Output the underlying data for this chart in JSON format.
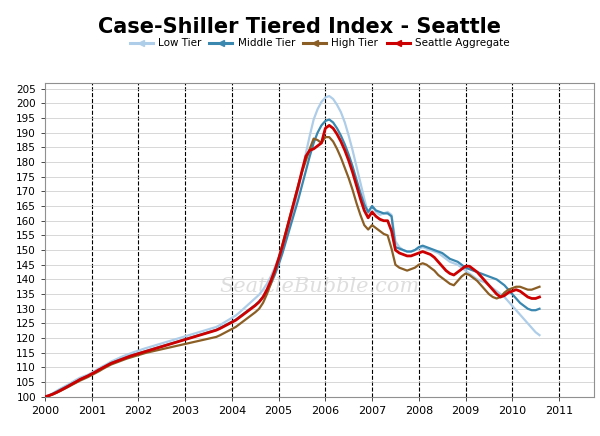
{
  "title": "Case-Shiller Tiered Index - Seattle",
  "title_fontsize": 15,
  "background_color": "#ffffff",
  "plot_bg_color": "#ffffff",
  "grid_color": "#c8c8c8",
  "ylim": [
    100,
    207
  ],
  "yticks": [
    100,
    105,
    110,
    115,
    120,
    125,
    130,
    135,
    140,
    145,
    150,
    155,
    160,
    165,
    170,
    175,
    180,
    185,
    190,
    195,
    200,
    205
  ],
  "xlim_start": 2000.0,
  "xlim_end": 2011.75,
  "watermark": "SeattleBubble.com",
  "series": {
    "low_tier": {
      "label": "Low Tier",
      "color": "#aecde8",
      "linewidth": 1.6,
      "values": [
        100.0,
        100.5,
        101.2,
        102.0,
        102.8,
        103.5,
        104.2,
        105.0,
        105.8,
        106.5,
        107.0,
        107.5,
        108.2,
        109.0,
        109.8,
        110.5,
        111.2,
        112.0,
        112.6,
        113.2,
        113.8,
        114.3,
        114.8,
        115.3,
        115.7,
        116.2,
        116.6,
        117.0,
        117.4,
        117.8,
        118.2,
        118.6,
        119.0,
        119.4,
        119.8,
        120.2,
        120.6,
        121.0,
        121.4,
        121.8,
        122.2,
        122.6,
        123.0,
        123.4,
        123.8,
        124.5,
        125.3,
        126.1,
        126.9,
        127.7,
        128.8,
        130.0,
        131.2,
        132.4,
        133.6,
        134.8,
        136.5,
        138.5,
        141.0,
        144.0,
        147.5,
        151.5,
        155.5,
        160.0,
        165.0,
        170.5,
        176.5,
        183.0,
        189.0,
        194.5,
        198.0,
        200.5,
        202.0,
        202.5,
        201.5,
        199.5,
        197.0,
        193.5,
        189.0,
        184.0,
        178.5,
        173.0,
        167.5,
        162.5,
        165.0,
        163.0,
        162.0,
        162.5,
        163.0,
        162.0,
        153.0,
        151.0,
        150.0,
        149.5,
        149.5,
        150.0,
        150.5,
        151.0,
        150.5,
        150.0,
        149.5,
        149.0,
        148.0,
        147.0,
        146.0,
        145.5,
        145.0,
        144.0,
        143.0,
        142.0,
        141.0,
        140.0,
        139.5,
        139.0,
        138.0,
        137.0,
        136.0,
        135.0,
        134.0,
        132.5,
        131.0,
        129.5,
        128.0,
        126.5,
        125.0,
        123.5,
        122.0,
        121.0
      ]
    },
    "middle_tier": {
      "label": "Middle Tier",
      "color": "#3a87b0",
      "linewidth": 1.6,
      "values": [
        100.0,
        100.4,
        101.0,
        101.7,
        102.4,
        103.1,
        103.8,
        104.5,
        105.2,
        105.9,
        106.5,
        107.1,
        107.8,
        108.5,
        109.3,
        110.0,
        110.8,
        111.5,
        112.0,
        112.5,
        113.0,
        113.5,
        114.0,
        114.4,
        114.8,
        115.2,
        115.6,
        116.0,
        116.4,
        116.8,
        117.2,
        117.6,
        118.0,
        118.4,
        118.8,
        119.2,
        119.6,
        120.0,
        120.4,
        120.8,
        121.2,
        121.6,
        122.0,
        122.4,
        122.8,
        123.5,
        124.2,
        124.9,
        125.6,
        126.3,
        127.3,
        128.3,
        129.3,
        130.3,
        131.3,
        132.5,
        134.0,
        136.0,
        138.5,
        141.5,
        145.0,
        149.0,
        153.5,
        158.0,
        162.5,
        167.0,
        172.0,
        177.0,
        182.0,
        186.5,
        190.0,
        192.5,
        194.0,
        194.5,
        193.5,
        191.5,
        189.0,
        186.0,
        182.5,
        178.5,
        174.0,
        169.5,
        165.5,
        163.0,
        165.0,
        163.5,
        163.0,
        162.5,
        162.5,
        161.5,
        151.0,
        150.5,
        150.0,
        149.5,
        149.5,
        150.0,
        151.0,
        151.5,
        151.0,
        150.5,
        150.0,
        149.5,
        149.0,
        148.0,
        147.0,
        146.5,
        146.0,
        145.0,
        144.0,
        143.5,
        143.0,
        142.5,
        142.0,
        141.5,
        141.0,
        140.5,
        140.0,
        139.0,
        138.0,
        136.5,
        135.0,
        133.5,
        132.0,
        131.0,
        130.0,
        129.5,
        129.5,
        130.0
      ]
    },
    "high_tier": {
      "label": "High Tier",
      "color": "#8b5e25",
      "linewidth": 1.6,
      "values": [
        100.0,
        100.3,
        100.8,
        101.4,
        102.0,
        102.7,
        103.4,
        104.1,
        104.8,
        105.5,
        106.1,
        106.7,
        107.4,
        108.1,
        108.8,
        109.6,
        110.3,
        111.0,
        111.5,
        112.0,
        112.5,
        113.0,
        113.4,
        113.8,
        114.2,
        114.6,
        115.0,
        115.3,
        115.6,
        115.9,
        116.2,
        116.5,
        116.8,
        117.1,
        117.4,
        117.7,
        118.0,
        118.3,
        118.6,
        118.9,
        119.2,
        119.5,
        119.8,
        120.1,
        120.4,
        121.0,
        121.7,
        122.4,
        123.1,
        123.8,
        124.8,
        125.8,
        126.8,
        127.8,
        128.8,
        130.0,
        132.0,
        135.0,
        138.5,
        142.5,
        147.0,
        152.0,
        157.0,
        162.0,
        167.0,
        172.0,
        176.5,
        180.5,
        184.5,
        188.0,
        187.5,
        186.5,
        188.5,
        188.5,
        187.0,
        184.5,
        181.5,
        178.0,
        174.5,
        170.5,
        166.0,
        162.0,
        158.5,
        157.0,
        158.5,
        157.5,
        156.5,
        155.5,
        155.0,
        150.5,
        145.0,
        144.0,
        143.5,
        143.0,
        143.5,
        144.0,
        145.0,
        145.5,
        145.0,
        144.0,
        143.0,
        141.5,
        140.5,
        139.5,
        138.5,
        138.0,
        139.5,
        141.0,
        142.0,
        141.5,
        140.5,
        139.5,
        138.0,
        136.5,
        135.0,
        134.0,
        133.5,
        134.0,
        135.5,
        136.5,
        137.0,
        137.5,
        137.5,
        137.0,
        136.5,
        136.5,
        137.0,
        137.5
      ]
    },
    "seattle_agg": {
      "label": "Seattle Aggregate",
      "color": "#cc0000",
      "linewidth": 2.0,
      "values": [
        100.0,
        100.4,
        100.9,
        101.5,
        102.2,
        102.9,
        103.6,
        104.4,
        105.1,
        105.9,
        106.5,
        107.1,
        107.8,
        108.5,
        109.3,
        110.0,
        110.7,
        111.4,
        111.9,
        112.4,
        112.9,
        113.4,
        113.9,
        114.3,
        114.7,
        115.1,
        115.5,
        115.9,
        116.3,
        116.7,
        117.1,
        117.5,
        117.9,
        118.3,
        118.7,
        119.1,
        119.5,
        119.9,
        120.3,
        120.7,
        121.1,
        121.5,
        121.9,
        122.3,
        122.7,
        123.3,
        124.0,
        124.7,
        125.4,
        126.1,
        127.1,
        128.1,
        129.1,
        130.1,
        131.1,
        132.3,
        134.0,
        136.5,
        139.5,
        143.0,
        147.0,
        151.5,
        156.5,
        161.5,
        166.5,
        171.5,
        177.0,
        182.0,
        184.0,
        184.5,
        185.5,
        186.5,
        191.5,
        192.5,
        191.5,
        189.5,
        187.0,
        184.0,
        180.5,
        176.5,
        172.0,
        167.5,
        163.5,
        161.0,
        163.0,
        161.5,
        160.5,
        160.0,
        160.0,
        156.5,
        150.0,
        149.0,
        148.5,
        148.0,
        148.0,
        148.5,
        149.0,
        149.5,
        149.0,
        148.5,
        147.5,
        146.0,
        144.5,
        143.0,
        142.0,
        141.5,
        142.5,
        143.5,
        144.5,
        144.5,
        143.5,
        142.5,
        141.0,
        139.5,
        138.0,
        136.5,
        135.0,
        134.0,
        134.5,
        135.5,
        136.0,
        136.5,
        136.0,
        135.0,
        134.0,
        133.5,
        133.5,
        134.0
      ]
    }
  },
  "dashed_vlines": [
    2001.0,
    2002.0,
    2003.0,
    2004.0,
    2005.0,
    2006.0,
    2007.0,
    2008.0,
    2009.0,
    2010.0,
    2011.0
  ],
  "xtick_labels": [
    "2000",
    "2001",
    "2002",
    "2003",
    "2004",
    "2005",
    "2006",
    "2007",
    "2008",
    "2009",
    "2010",
    "2011"
  ],
  "xtick_positions": [
    2000.0,
    2001.0,
    2002.0,
    2003.0,
    2004.0,
    2005.0,
    2006.0,
    2007.0,
    2008.0,
    2009.0,
    2010.0,
    2011.0
  ]
}
